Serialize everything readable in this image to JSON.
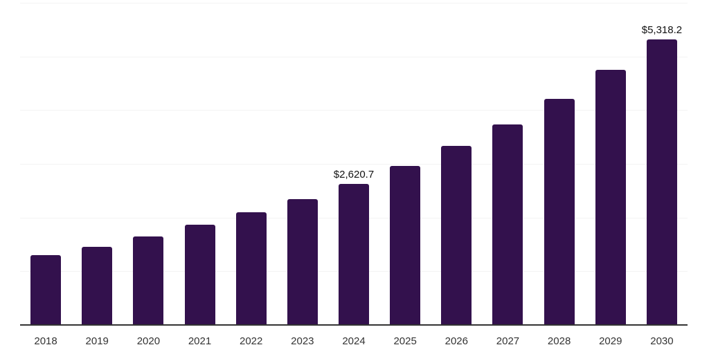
{
  "chart_data": {
    "type": "bar",
    "title": "",
    "xlabel": "",
    "ylabel": "",
    "categories": [
      "2018",
      "2019",
      "2020",
      "2021",
      "2022",
      "2023",
      "2024",
      "2025",
      "2026",
      "2027",
      "2028",
      "2029",
      "2030"
    ],
    "values": [
      1300,
      1450,
      1650,
      1865,
      2095,
      2340,
      2620.7,
      2955,
      3330,
      3730,
      4205,
      4745,
      5318.2
    ],
    "value_labels": [
      "",
      "",
      "",
      "",
      "",
      "",
      "$2,620.7",
      "",
      "",
      "",
      "",
      "",
      "$5,318.2"
    ],
    "ylim": [
      0,
      6000
    ],
    "gridline_interval": 1000,
    "grid": "horizontal",
    "legend": "none",
    "y_tick_labels_visible": false
  },
  "style": {
    "bar_color": "#33114d",
    "axis_line_color": "#333333",
    "gridline_color": "#f3f3f3",
    "tick_label_color": "#333333",
    "value_label_color": "#111111",
    "background": "#ffffff"
  }
}
